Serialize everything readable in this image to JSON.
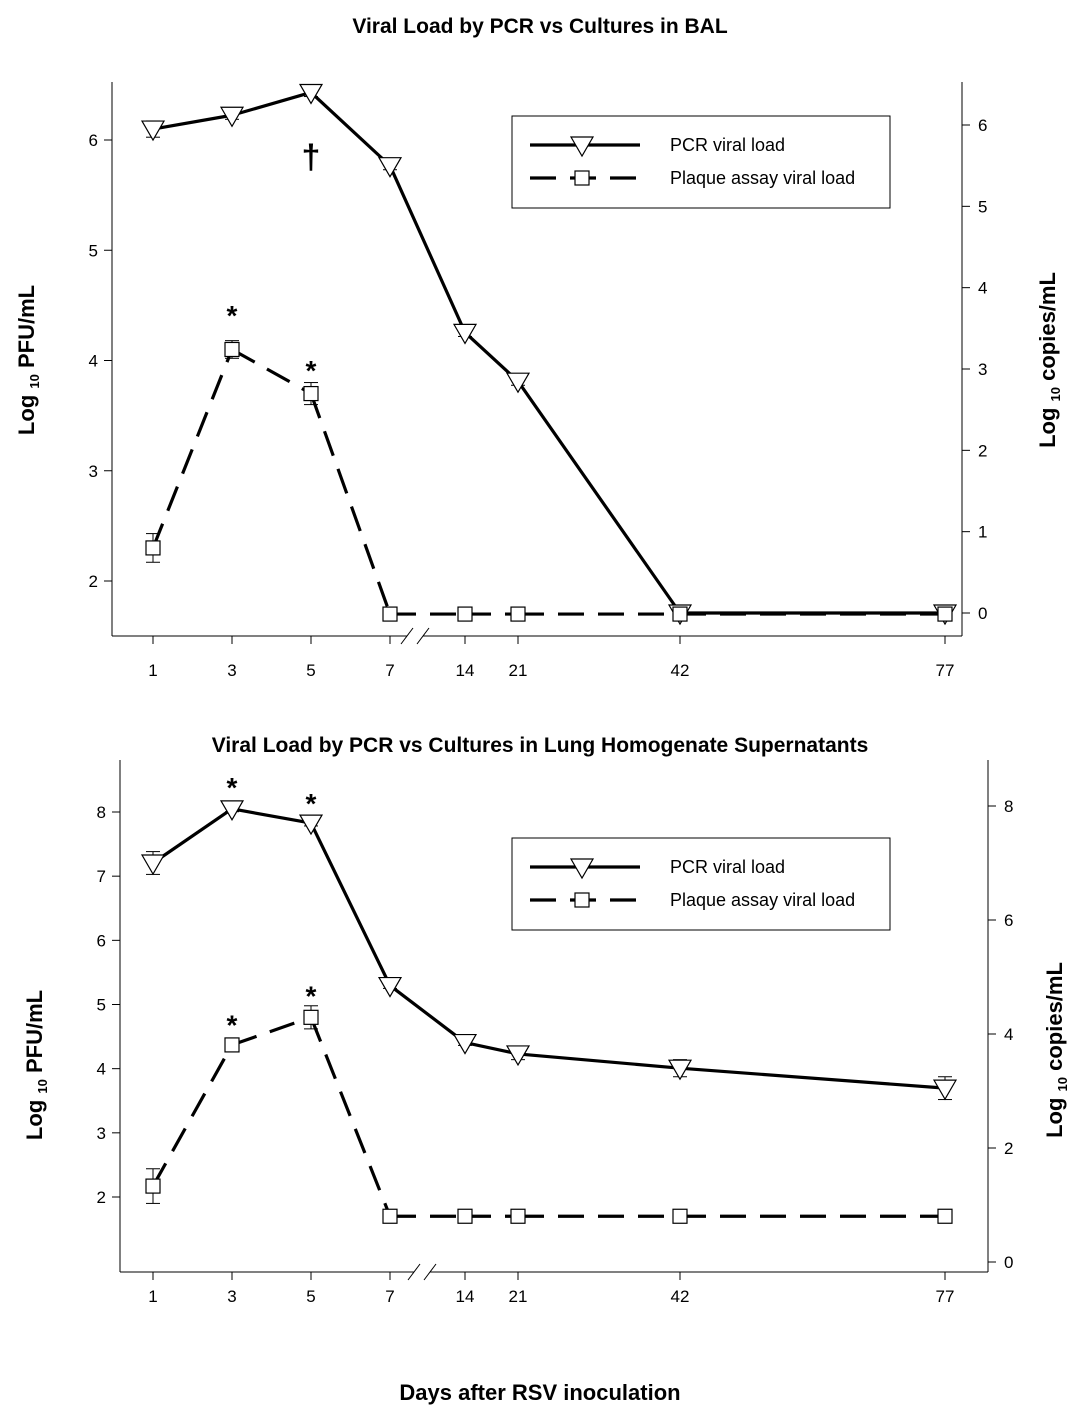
{
  "x_axis_label": "Days after RSV inoculation",
  "chart_data": [
    {
      "type": "line",
      "title": "Viral Load by PCR vs Cultures in BAL",
      "ylabel_left_main": "Log",
      "ylabel_left_sub": "10",
      "ylabel_left_rest": "PFU/mL",
      "ylabel_right_main": "Log",
      "ylabel_right_sub": "10",
      "ylabel_right_rest": "copies/mL",
      "x_categories": [
        "1",
        "3",
        "5",
        "7",
        "14",
        "21",
        "42",
        "77"
      ],
      "axis_break": "between 7 and 14",
      "ylim_left": [
        1.5,
        6.5
      ],
      "yticks_left": [
        2,
        3,
        4,
        5,
        6
      ],
      "ylim_right": [
        -0.3,
        6.5
      ],
      "yticks_right": [
        0,
        1,
        2,
        3,
        4,
        5,
        6
      ],
      "legend": {
        "placement": "top-right",
        "entries": [
          "PCR viral load",
          "Plaque assay viral load"
        ]
      },
      "series": [
        {
          "name": "PCR viral load",
          "axis": "right",
          "style": "solid",
          "marker": "triangle-down",
          "values": [
            5.95,
            6.12,
            6.4,
            5.5,
            3.45,
            2.85,
            0.0,
            0.0
          ],
          "errors": [
            0.1,
            0.05,
            0.05,
            0.05,
            0.05,
            0.05,
            0.0,
            0.0
          ]
        },
        {
          "name": "Plaque assay viral load",
          "axis": "left",
          "style": "dashed",
          "marker": "square",
          "values": [
            2.3,
            4.1,
            3.7,
            1.7,
            1.7,
            1.7,
            1.7,
            1.7
          ],
          "errors": [
            0.13,
            0.08,
            0.1,
            0.0,
            0.0,
            0.0,
            0.0,
            0.0
          ]
        }
      ],
      "annotations": [
        {
          "text": "*",
          "x": "3",
          "y_left": 4.45
        },
        {
          "text": "*",
          "x": "5",
          "y_left": 3.95
        },
        {
          "text": "†",
          "x": "5",
          "y_left": 5.85
        }
      ]
    },
    {
      "type": "line",
      "title": "Viral Load by PCR vs Cultures in Lung Homogenate Supernatants",
      "ylabel_left_main": "Log",
      "ylabel_left_sub": "10",
      "ylabel_left_rest": "PFU/mL",
      "ylabel_right_main": "Log",
      "ylabel_right_sub": "10",
      "ylabel_right_rest": "copies/mL",
      "x_categories": [
        "1",
        "3",
        "5",
        "7",
        "14",
        "21",
        "42",
        "77"
      ],
      "axis_break": "between 7 and 14",
      "ylim_left": [
        1.5,
        8.5
      ],
      "yticks_left": [
        2,
        3,
        4,
        5,
        6,
        7,
        8
      ],
      "ylim_right": [
        0,
        8.5
      ],
      "yticks_right": [
        0,
        2,
        4,
        6,
        8
      ],
      "legend": {
        "placement": "top-right",
        "entries": [
          "PCR viral load",
          "Plaque assay viral load"
        ]
      },
      "series": [
        {
          "name": "PCR viral load",
          "axis": "right",
          "style": "solid",
          "marker": "triangle-down",
          "values": [
            7.0,
            7.95,
            7.7,
            4.85,
            3.85,
            3.65,
            3.4,
            3.05
          ],
          "errors": [
            0.2,
            0.05,
            0.05,
            0.05,
            0.05,
            0.1,
            0.15,
            0.2
          ]
        },
        {
          "name": "Plaque assay viral load",
          "axis": "left",
          "style": "dashed",
          "marker": "square",
          "values": [
            2.17,
            4.37,
            4.8,
            1.7,
            1.7,
            1.7,
            1.7,
            1.7
          ],
          "errors": [
            0.27,
            0.05,
            0.18,
            0.0,
            0.0,
            0.0,
            0.0,
            0.0
          ]
        }
      ],
      "annotations": [
        {
          "text": "*",
          "x": "3",
          "y_left": 8.45
        },
        {
          "text": "*",
          "x": "5",
          "y_left": 8.2
        },
        {
          "text": "*",
          "x": "3",
          "y_left": 4.75
        },
        {
          "text": "*",
          "x": "5",
          "y_left": 5.2
        }
      ]
    }
  ]
}
